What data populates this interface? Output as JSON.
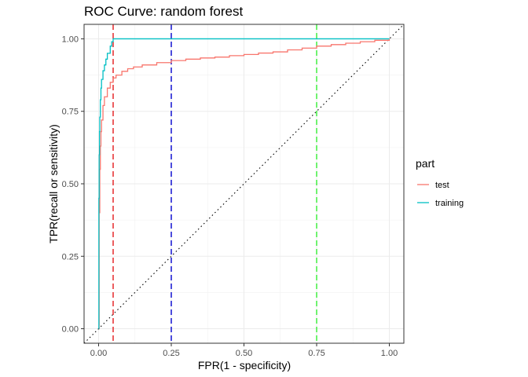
{
  "chart_data": {
    "type": "line",
    "title": "ROC Curve: random forest",
    "xlabel": "FPR(1 - specificity)",
    "ylabel": "TPR(recall or sensitivity)",
    "xlim": [
      -0.05,
      1.05
    ],
    "ylim": [
      -0.05,
      1.05
    ],
    "x_ticks": [
      0,
      0.25,
      0.5,
      0.75,
      1
    ],
    "x_tick_labels": [
      "0.00",
      "0.25",
      "0.50",
      "0.75",
      "1.00"
    ],
    "y_ticks": [
      0,
      0.25,
      0.5,
      0.75,
      1
    ],
    "y_tick_labels": [
      "0.00",
      "0.25",
      "0.50",
      "0.75",
      "1.00"
    ],
    "grid": true,
    "legend": {
      "title": "part",
      "placement": "right"
    },
    "series": [
      {
        "name": "test",
        "color": "#F8766D",
        "x": [
          0,
          0.002,
          0.004,
          0.006,
          0.008,
          0.01,
          0.015,
          0.02,
          0.03,
          0.04,
          0.05,
          0.06,
          0.08,
          0.1,
          0.12,
          0.15,
          0.2,
          0.25,
          0.3,
          0.35,
          0.4,
          0.45,
          0.5,
          0.55,
          0.6,
          0.65,
          0.7,
          0.75,
          0.8,
          0.85,
          0.9,
          0.95,
          1.0
        ],
        "y": [
          0,
          0.4,
          0.55,
          0.63,
          0.68,
          0.72,
          0.77,
          0.8,
          0.83,
          0.85,
          0.865,
          0.875,
          0.888,
          0.897,
          0.903,
          0.91,
          0.918,
          0.925,
          0.93,
          0.934,
          0.937,
          0.942,
          0.946,
          0.951,
          0.955,
          0.962,
          0.968,
          0.975,
          0.98,
          0.985,
          0.99,
          0.995,
          1.0
        ]
      },
      {
        "name": "training",
        "color": "#00BFC4",
        "x": [
          0,
          0.001,
          0.002,
          0.003,
          0.004,
          0.006,
          0.008,
          0.01,
          0.015,
          0.02,
          0.025,
          0.03,
          0.04,
          0.045,
          0.05,
          0.06,
          0.2,
          0.4,
          0.6,
          0.8,
          1.0
        ],
        "y": [
          0,
          0.45,
          0.6,
          0.68,
          0.73,
          0.79,
          0.83,
          0.86,
          0.89,
          0.91,
          0.93,
          0.95,
          0.975,
          0.99,
          1.0,
          1.0,
          1.0,
          1.0,
          1.0,
          1.0,
          1.0
        ]
      }
    ],
    "reference_lines": [
      {
        "type": "diagonal",
        "style": "dotted",
        "color": "#000000",
        "from": [
          -0.05,
          -0.05
        ],
        "to": [
          1.05,
          1.05
        ]
      },
      {
        "type": "vline",
        "x": 0.05,
        "style": "dashed",
        "color": "#E41A1C"
      },
      {
        "type": "vline",
        "x": 0.25,
        "style": "dashed",
        "color": "#0000CC"
      },
      {
        "type": "vline",
        "x": 0.75,
        "style": "dashed",
        "color": "#33EE33"
      }
    ]
  }
}
